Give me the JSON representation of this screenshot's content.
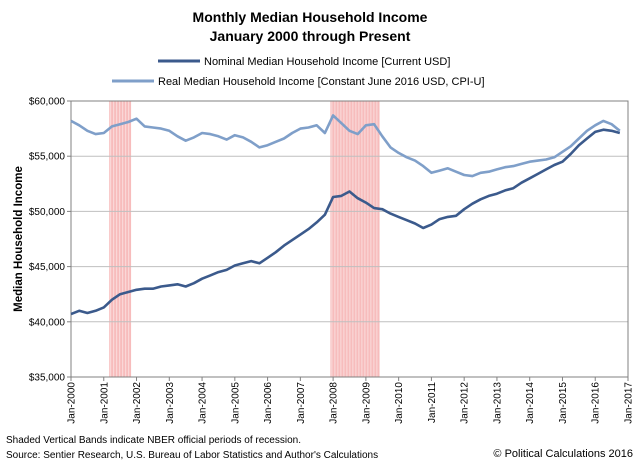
{
  "chart_data": {
    "type": "line",
    "title": "Monthly Median Household Income",
    "subtitle": "January 2000 through Present",
    "ylabel": "Median Household Income",
    "xlabel": "",
    "ylim": [
      35000,
      60000
    ],
    "xlim": [
      "Jan-2000",
      "Jan-2017"
    ],
    "y_ticks": [
      "$35,000",
      "$40,000",
      "$45,000",
      "$50,000",
      "$55,000",
      "$60,000"
    ],
    "y_tick_values": [
      35000,
      40000,
      45000,
      50000,
      55000,
      60000
    ],
    "x_ticks": [
      "Jan-2000",
      "Jan-2001",
      "Jan-2002",
      "Jan-2003",
      "Jan-2004",
      "Jan-2005",
      "Jan-2006",
      "Jan-2007",
      "Jan-2008",
      "Jan-2009",
      "Jan-2010",
      "Jan-2011",
      "Jan-2012",
      "Jan-2013",
      "Jan-2014",
      "Jan-2015",
      "Jan-2016",
      "Jan-2017"
    ],
    "grid": true,
    "legend_position": "top-center",
    "recession_bands": [
      [
        "Mar-2001",
        "Nov-2001"
      ],
      [
        "Dec-2007",
        "Jun-2009"
      ]
    ],
    "recession_color": "#f4a6a6",
    "series": [
      {
        "name": "Nominal Median Household Income [Current USD]",
        "color": "#3b5a8c",
        "points": [
          [
            "2000.0",
            40700
          ],
          [
            "2000.25",
            41000
          ],
          [
            "2000.5",
            40800
          ],
          [
            "2000.75",
            41000
          ],
          [
            "2001.0",
            41300
          ],
          [
            "2001.25",
            42000
          ],
          [
            "2001.5",
            42500
          ],
          [
            "2001.75",
            42700
          ],
          [
            "2002.0",
            42900
          ],
          [
            "2002.25",
            43000
          ],
          [
            "2002.5",
            43000
          ],
          [
            "2002.75",
            43200
          ],
          [
            "2003.0",
            43300
          ],
          [
            "2003.25",
            43400
          ],
          [
            "2003.5",
            43200
          ],
          [
            "2003.75",
            43500
          ],
          [
            "2004.0",
            43900
          ],
          [
            "2004.25",
            44200
          ],
          [
            "2004.5",
            44500
          ],
          [
            "2004.75",
            44700
          ],
          [
            "2005.0",
            45100
          ],
          [
            "2005.25",
            45300
          ],
          [
            "2005.5",
            45500
          ],
          [
            "2005.75",
            45300
          ],
          [
            "2006.0",
            45800
          ],
          [
            "2006.25",
            46300
          ],
          [
            "2006.5",
            46900
          ],
          [
            "2006.75",
            47400
          ],
          [
            "2007.0",
            47900
          ],
          [
            "2007.25",
            48400
          ],
          [
            "2007.5",
            49000
          ],
          [
            "2007.75",
            49700
          ],
          [
            "2008.0",
            51300
          ],
          [
            "2008.25",
            51400
          ],
          [
            "2008.5",
            51800
          ],
          [
            "2008.75",
            51200
          ],
          [
            "2009.0",
            50800
          ],
          [
            "2009.25",
            50300
          ],
          [
            "2009.5",
            50200
          ],
          [
            "2009.75",
            49800
          ],
          [
            "2010.0",
            49500
          ],
          [
            "2010.25",
            49200
          ],
          [
            "2010.5",
            48900
          ],
          [
            "2010.75",
            48500
          ],
          [
            "2011.0",
            48800
          ],
          [
            "2011.25",
            49300
          ],
          [
            "2011.5",
            49500
          ],
          [
            "2011.75",
            49600
          ],
          [
            "2012.0",
            50200
          ],
          [
            "2012.25",
            50700
          ],
          [
            "2012.5",
            51100
          ],
          [
            "2012.75",
            51400
          ],
          [
            "2013.0",
            51600
          ],
          [
            "2013.25",
            51900
          ],
          [
            "2013.5",
            52100
          ],
          [
            "2013.75",
            52600
          ],
          [
            "2014.0",
            53000
          ],
          [
            "2014.25",
            53400
          ],
          [
            "2014.5",
            53800
          ],
          [
            "2014.75",
            54200
          ],
          [
            "2015.0",
            54500
          ],
          [
            "2015.25",
            55200
          ],
          [
            "2015.5",
            56000
          ],
          [
            "2015.75",
            56600
          ],
          [
            "2016.0",
            57200
          ],
          [
            "2016.25",
            57400
          ],
          [
            "2016.5",
            57300
          ],
          [
            "2016.75",
            57100
          ]
        ]
      },
      {
        "name": "Real Median Household Income [Constant June 2016 USD, CPI-U]",
        "color": "#7f9fc9",
        "points": [
          [
            "2000.0",
            58200
          ],
          [
            "2000.25",
            57800
          ],
          [
            "2000.5",
            57300
          ],
          [
            "2000.75",
            57000
          ],
          [
            "2001.0",
            57100
          ],
          [
            "2001.25",
            57700
          ],
          [
            "2001.5",
            57900
          ],
          [
            "2001.75",
            58100
          ],
          [
            "2002.0",
            58400
          ],
          [
            "2002.25",
            57700
          ],
          [
            "2002.5",
            57600
          ],
          [
            "2002.75",
            57500
          ],
          [
            "2003.0",
            57300
          ],
          [
            "2003.25",
            56800
          ],
          [
            "2003.5",
            56400
          ],
          [
            "2003.75",
            56700
          ],
          [
            "2004.0",
            57100
          ],
          [
            "2004.25",
            57000
          ],
          [
            "2004.5",
            56800
          ],
          [
            "2004.75",
            56500
          ],
          [
            "2005.0",
            56900
          ],
          [
            "2005.25",
            56700
          ],
          [
            "2005.5",
            56300
          ],
          [
            "2005.75",
            55800
          ],
          [
            "2006.0",
            56000
          ],
          [
            "2006.25",
            56300
          ],
          [
            "2006.5",
            56600
          ],
          [
            "2006.75",
            57100
          ],
          [
            "2007.0",
            57500
          ],
          [
            "2007.25",
            57600
          ],
          [
            "2007.5",
            57800
          ],
          [
            "2007.75",
            57100
          ],
          [
            "2008.0",
            58700
          ],
          [
            "2008.25",
            58000
          ],
          [
            "2008.5",
            57300
          ],
          [
            "2008.75",
            57000
          ],
          [
            "2009.0",
            57800
          ],
          [
            "2009.25",
            57900
          ],
          [
            "2009.5",
            56800
          ],
          [
            "2009.75",
            55800
          ],
          [
            "2010.0",
            55300
          ],
          [
            "2010.25",
            54900
          ],
          [
            "2010.5",
            54600
          ],
          [
            "2010.75",
            54100
          ],
          [
            "2011.0",
            53500
          ],
          [
            "2011.25",
            53700
          ],
          [
            "2011.5",
            53900
          ],
          [
            "2011.75",
            53600
          ],
          [
            "2012.0",
            53300
          ],
          [
            "2012.25",
            53200
          ],
          [
            "2012.5",
            53500
          ],
          [
            "2012.75",
            53600
          ],
          [
            "2013.0",
            53800
          ],
          [
            "2013.25",
            54000
          ],
          [
            "2013.5",
            54100
          ],
          [
            "2013.75",
            54300
          ],
          [
            "2014.0",
            54500
          ],
          [
            "2014.25",
            54600
          ],
          [
            "2014.5",
            54700
          ],
          [
            "2014.75",
            54900
          ],
          [
            "2015.0",
            55400
          ],
          [
            "2015.25",
            55900
          ],
          [
            "2015.5",
            56600
          ],
          [
            "2015.75",
            57300
          ],
          [
            "2016.0",
            57800
          ],
          [
            "2016.25",
            58200
          ],
          [
            "2016.5",
            57900
          ],
          [
            "2016.75",
            57300
          ]
        ]
      }
    ]
  },
  "footer": {
    "note": "Shaded Vertical Bands indicate NBER official periods of recession.",
    "source": "Source: Sentier Research, U.S. Bureau of Labor Statistics and Author's Calculations",
    "credit": "© Political Calculations 2016"
  }
}
